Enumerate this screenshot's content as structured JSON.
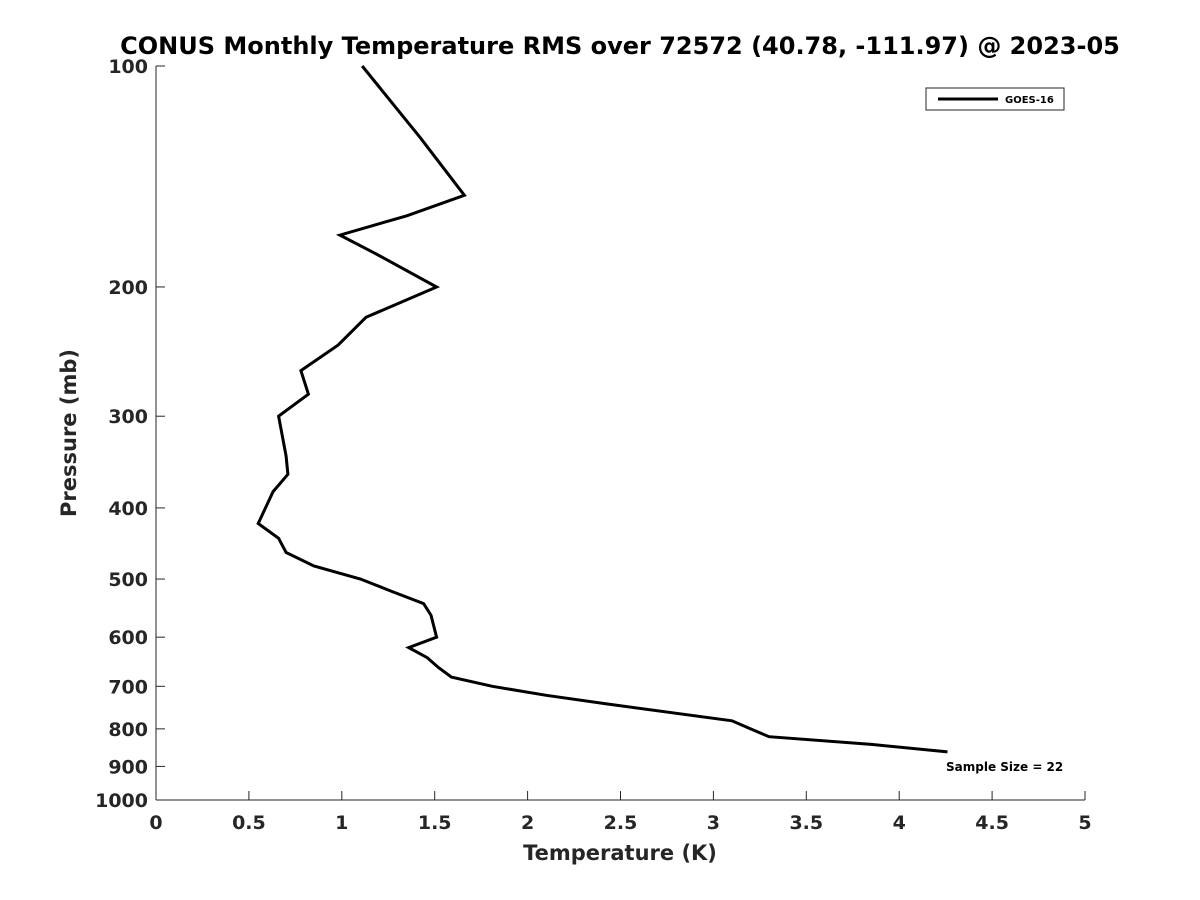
{
  "chart_data": {
    "type": "line",
    "title": "CONUS Monthly Temperature RMS over 72572 (40.78, -111.97) @ 2023-05",
    "xlabel": "Temperature (K)",
    "ylabel": "Pressure (mb)",
    "xlim": [
      0,
      5
    ],
    "ylim": [
      100,
      1000
    ],
    "y_scale": "log",
    "y_reversed": true,
    "x_ticks": [
      0,
      0.5,
      1,
      1.5,
      2,
      2.5,
      3,
      3.5,
      4,
      4.5,
      5
    ],
    "x_tick_labels": [
      "0",
      "0.5",
      "1",
      "1.5",
      "2",
      "2.5",
      "3",
      "3.5",
      "4",
      "4.5",
      "5"
    ],
    "y_ticks": [
      100,
      200,
      300,
      400,
      500,
      600,
      700,
      800,
      900,
      1000
    ],
    "y_tick_labels": [
      "100",
      "200",
      "300",
      "400",
      "500",
      "600",
      "700",
      "800",
      "900",
      "1000"
    ],
    "grid": false,
    "legend_position": "top-right",
    "series": [
      {
        "name": "GOES-16",
        "color": "#000000",
        "points": [
          {
            "x": 1.11,
            "p": 100
          },
          {
            "x": 1.42,
            "p": 125
          },
          {
            "x": 1.66,
            "p": 150
          },
          {
            "x": 1.35,
            "p": 160
          },
          {
            "x": 0.99,
            "p": 170
          },
          {
            "x": 1.18,
            "p": 180
          },
          {
            "x": 1.51,
            "p": 200
          },
          {
            "x": 1.13,
            "p": 220
          },
          {
            "x": 0.98,
            "p": 240
          },
          {
            "x": 0.78,
            "p": 260
          },
          {
            "x": 0.82,
            "p": 280
          },
          {
            "x": 0.66,
            "p": 300
          },
          {
            "x": 0.7,
            "p": 340
          },
          {
            "x": 0.71,
            "p": 360
          },
          {
            "x": 0.63,
            "p": 380
          },
          {
            "x": 0.55,
            "p": 420
          },
          {
            "x": 0.66,
            "p": 440
          },
          {
            "x": 0.7,
            "p": 460
          },
          {
            "x": 0.85,
            "p": 480
          },
          {
            "x": 1.1,
            "p": 500
          },
          {
            "x": 1.27,
            "p": 520
          },
          {
            "x": 1.44,
            "p": 540
          },
          {
            "x": 1.48,
            "p": 560
          },
          {
            "x": 1.51,
            "p": 600
          },
          {
            "x": 1.36,
            "p": 620
          },
          {
            "x": 1.46,
            "p": 640
          },
          {
            "x": 1.52,
            "p": 660
          },
          {
            "x": 1.59,
            "p": 680
          },
          {
            "x": 1.81,
            "p": 700
          },
          {
            "x": 2.1,
            "p": 720
          },
          {
            "x": 2.43,
            "p": 740
          },
          {
            "x": 3.1,
            "p": 780
          },
          {
            "x": 3.2,
            "p": 800
          },
          {
            "x": 3.3,
            "p": 820
          },
          {
            "x": 3.85,
            "p": 840
          },
          {
            "x": 4.26,
            "p": 860
          }
        ]
      }
    ],
    "annotation": "Sample Size = 22"
  }
}
